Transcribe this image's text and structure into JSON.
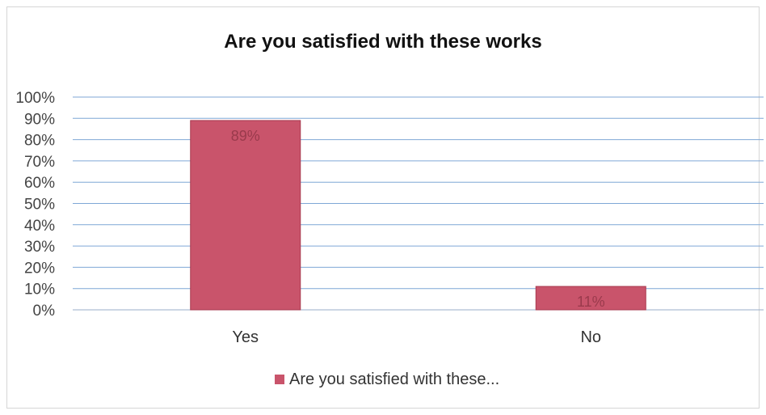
{
  "chart_data": {
    "type": "bar",
    "title": "Are you satisfied with these works",
    "categories": [
      "Yes",
      "No"
    ],
    "series": [
      {
        "name": "Are you satisfied with these...",
        "values": [
          89,
          11
        ],
        "data_labels": [
          "89%",
          "11%"
        ],
        "color": "#c9546b"
      }
    ],
    "ylim": [
      0,
      100
    ],
    "y_ticks": [
      "0%",
      "10%",
      "20%",
      "30%",
      "40%",
      "50%",
      "60%",
      "70%",
      "80%",
      "90%",
      "100%"
    ],
    "grid": true,
    "legend_position": "bottom",
    "colors": {
      "bar": "#c9546b",
      "bar_edge": "#a8394f",
      "grid": "#7fa7d6",
      "label": "#9a3a4c",
      "axis_text": "#444444"
    }
  }
}
